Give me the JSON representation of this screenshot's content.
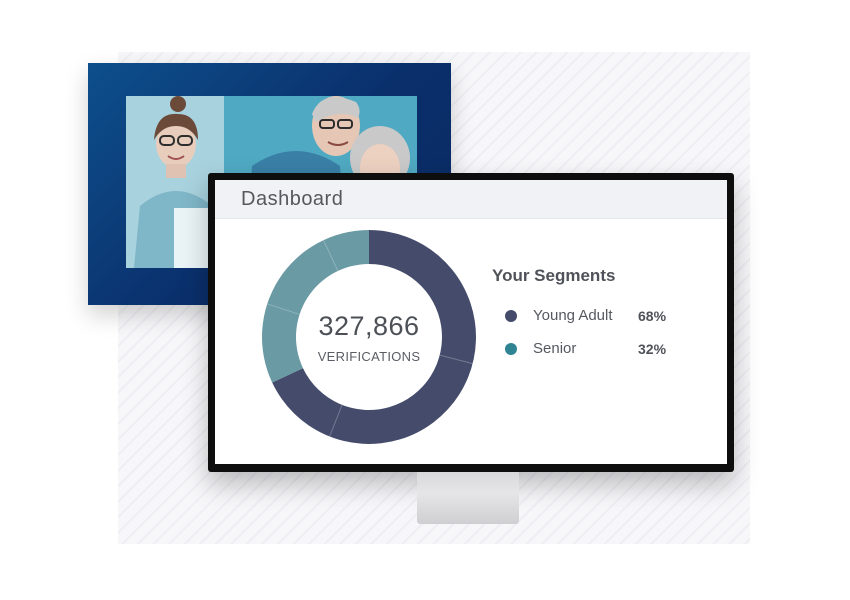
{
  "dashboard": {
    "title": "Dashboard",
    "total_value": "327,866",
    "total_label": "VERIFICATIONS"
  },
  "segments": {
    "title": "Your Segments",
    "items": [
      {
        "name": "Young Adult",
        "percent_label": "68%",
        "color": "#454c6b"
      },
      {
        "name": "Senior",
        "percent_label": "32%",
        "color": "#2f8494"
      }
    ]
  },
  "chart_data": {
    "type": "pie",
    "variant": "donut",
    "categories": [
      "Young Adult",
      "Senior"
    ],
    "values": [
      68,
      32
    ],
    "colors": [
      "#454c6b",
      "#6a9aa3"
    ],
    "center_value": "327,866",
    "center_label": "VERIFICATIONS",
    "legend_position": "right"
  },
  "colors": {
    "frame_accent": "#0a2f6b",
    "young_adult": "#454c6b",
    "senior": "#6a9aa3"
  }
}
